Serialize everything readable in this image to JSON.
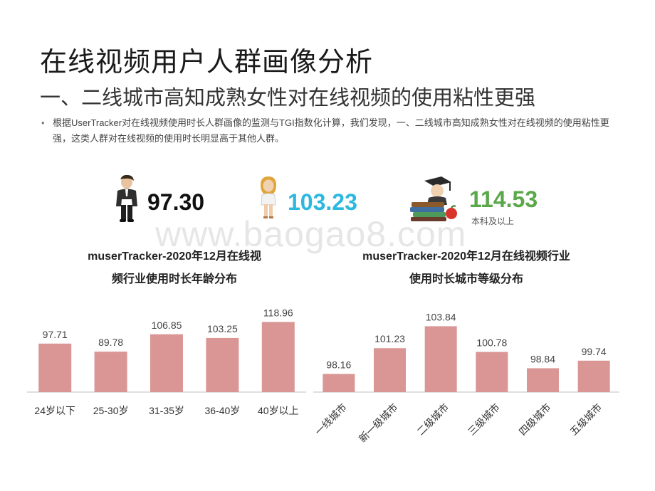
{
  "page": {
    "title": "在线视频用户人群画像分析",
    "subtitle": "一、二线城市高知成熟女性对在线视频的使用粘性更强",
    "bullet_text": "根据UserTracker对在线视频使用时长人群画像的监测与TGI指数化计算，我们发现，一、二线城市高知成熟女性对在线视频的使用粘性更强，这类人群对在线视频的使用时长明显高于其他人群。",
    "watermark": "www.baogao8.com"
  },
  "stats": {
    "male": {
      "value": "97.30",
      "icon": "male-figure-icon"
    },
    "female": {
      "value": "103.23",
      "icon": "female-figure-icon"
    },
    "education": {
      "value": "114.53",
      "label": "本科及以上",
      "icon": "graduate-books-icon"
    }
  },
  "colors": {
    "bar": "#d99694",
    "female_value": "#2db8e0",
    "edu_value": "#5aa84a"
  },
  "chart_data": [
    {
      "type": "bar",
      "title": "muserTracker-2020年12月在线视频行业使用时长年龄分布",
      "title_lines": [
        "muserTracker-2020年12月在线视",
        "频行业使用时长年龄分布"
      ],
      "categories": [
        "24岁以下",
        "25-30岁",
        "31-35岁",
        "36-40岁",
        "40岁以上"
      ],
      "values": [
        97.71,
        89.78,
        106.85,
        103.25,
        118.96
      ],
      "ylim": [
        50,
        120
      ],
      "grid": false,
      "axis": false
    },
    {
      "type": "bar",
      "title": "muserTracker-2020年12月在线视频行业使用时长城市等级分布",
      "title_lines": [
        "muserTracker-2020年12月在线视频行业",
        "使用时长城市等级分布"
      ],
      "categories": [
        "一线城市",
        "新一级城市",
        "二级城市",
        "三级城市",
        "四级城市",
        "五级城市"
      ],
      "values": [
        98.16,
        101.23,
        103.84,
        100.78,
        98.84,
        99.74
      ],
      "ylim": [
        96,
        104.3
      ],
      "grid": false,
      "axis": false
    }
  ]
}
